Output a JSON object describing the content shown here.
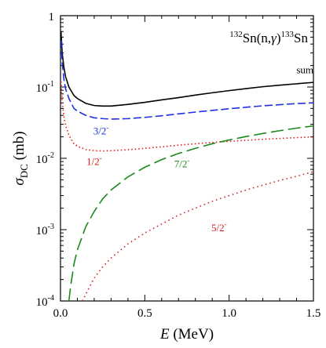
{
  "chart_data": {
    "type": "line",
    "title": "",
    "reaction": {
      "target_mass": "132",
      "target_rest": "Sn(n,",
      "gamma": "γ",
      "close": ")",
      "product_mass": "133",
      "product_rest": "Sn"
    },
    "xlabel": {
      "var": "E",
      "unit": " (MeV)"
    },
    "ylabel": {
      "sigma": "σ",
      "sub": "DC",
      "unit": " (mb)"
    },
    "xlim": [
      0.0,
      1.5
    ],
    "ylim": [
      0.0001,
      1
    ],
    "yscale": "log",
    "grid": false,
    "x_ticks": [
      {
        "value": 0.0,
        "label": "0.0"
      },
      {
        "value": 0.5,
        "label": "0.5"
      },
      {
        "value": 1.0,
        "label": "1.0"
      },
      {
        "value": 1.5,
        "label": "1.5"
      }
    ],
    "y_ticks": [
      {
        "value": 1,
        "base": "1",
        "exp": ""
      },
      {
        "value": 0.1,
        "base": "10",
        "exp": "-1"
      },
      {
        "value": 0.01,
        "base": "10",
        "exp": "-2"
      },
      {
        "value": 0.001,
        "base": "10",
        "exp": "-3"
      },
      {
        "value": 0.0001,
        "base": "10",
        "exp": "-4"
      }
    ],
    "series": [
      {
        "name": "sum",
        "label_main": "sum",
        "label_sup": "",
        "color": "#000000",
        "dash": "",
        "label_at": [
          1.5,
          0.155
        ],
        "x": [
          0.003,
          0.01,
          0.02,
          0.03,
          0.05,
          0.08,
          0.1,
          0.15,
          0.2,
          0.25,
          0.3,
          0.4,
          0.5,
          0.6,
          0.7,
          0.8,
          0.9,
          1.0,
          1.1,
          1.2,
          1.3,
          1.4,
          1.5
        ],
        "y": [
          0.6,
          0.3,
          0.19,
          0.14,
          0.1,
          0.076,
          0.069,
          0.059,
          0.055,
          0.054,
          0.054,
          0.057,
          0.061,
          0.066,
          0.071,
          0.077,
          0.083,
          0.089,
          0.095,
          0.101,
          0.106,
          0.111,
          0.116
        ]
      },
      {
        "name": "3/2-",
        "label_main": "3/2",
        "label_sup": "-",
        "color": "#1f2fe0",
        "dash": "10 4",
        "label_at": [
          0.24,
          0.0215
        ],
        "x": [
          0.003,
          0.01,
          0.02,
          0.03,
          0.05,
          0.08,
          0.1,
          0.15,
          0.2,
          0.25,
          0.3,
          0.4,
          0.5,
          0.6,
          0.7,
          0.8,
          0.9,
          1.0,
          1.1,
          1.2,
          1.3,
          1.4,
          1.5
        ],
        "y": [
          0.45,
          0.22,
          0.13,
          0.095,
          0.069,
          0.05,
          0.046,
          0.04,
          0.037,
          0.036,
          0.0355,
          0.036,
          0.0375,
          0.0395,
          0.042,
          0.0445,
          0.047,
          0.0495,
          0.052,
          0.0545,
          0.0565,
          0.0585,
          0.06
        ]
      },
      {
        "name": "1/2-",
        "label_main": "1/2",
        "label_sup": "-",
        "color": "#e01818",
        "dash": "1.5 3",
        "label_at": [
          0.2,
          0.0081
        ],
        "x": [
          0.003,
          0.01,
          0.02,
          0.03,
          0.05,
          0.08,
          0.1,
          0.15,
          0.2,
          0.25,
          0.3,
          0.4,
          0.5,
          0.6,
          0.7,
          0.8,
          0.9,
          1.0,
          1.1,
          1.2,
          1.3,
          1.4,
          1.5
        ],
        "y": [
          0.12,
          0.062,
          0.039,
          0.029,
          0.021,
          0.016,
          0.0148,
          0.0133,
          0.0128,
          0.0127,
          0.0128,
          0.0132,
          0.0138,
          0.0145,
          0.0153,
          0.016,
          0.0167,
          0.0173,
          0.0179,
          0.0185,
          0.019,
          0.0195,
          0.02
        ]
      },
      {
        "name": "7/2-",
        "label_main": "7/2",
        "label_sup": "-",
        "color": "#1a8a1a",
        "dash": "16 6",
        "label_at": [
          0.72,
          0.0075
        ],
        "x": [
          0.05,
          0.06,
          0.08,
          0.1,
          0.15,
          0.2,
          0.25,
          0.3,
          0.4,
          0.5,
          0.6,
          0.7,
          0.8,
          0.9,
          1.0,
          1.1,
          1.2,
          1.3,
          1.4,
          1.5
        ],
        "y": [
          0.0001,
          0.00016,
          0.00033,
          0.00052,
          0.0011,
          0.0018,
          0.0027,
          0.0036,
          0.0055,
          0.0075,
          0.0096,
          0.0117,
          0.0138,
          0.016,
          0.0181,
          0.0202,
          0.0223,
          0.0244,
          0.0265,
          0.0285
        ]
      },
      {
        "name": "5/2-",
        "label_main": "5/2",
        "label_sup": "-",
        "color": "#cc2020",
        "dash": "1.5 4",
        "label_at": [
          0.94,
          0.00095
        ],
        "x": [
          0.13,
          0.15,
          0.2,
          0.25,
          0.3,
          0.4,
          0.5,
          0.6,
          0.7,
          0.8,
          0.9,
          1.0,
          1.1,
          1.2,
          1.3,
          1.4,
          1.5
        ],
        "y": [
          0.0001,
          0.000125,
          0.00021,
          0.0003,
          0.0004,
          0.00063,
          0.0009,
          0.0012,
          0.0016,
          0.002,
          0.0025,
          0.003,
          0.0036,
          0.0042,
          0.0049,
          0.0056,
          0.0065
        ]
      }
    ]
  }
}
